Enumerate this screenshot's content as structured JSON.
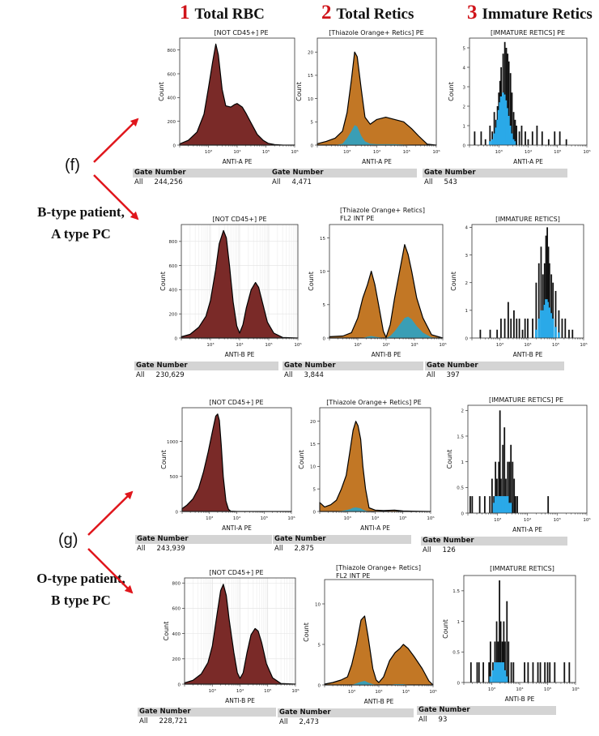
{
  "columns": [
    {
      "number": "1",
      "label": "Total RBC"
    },
    {
      "number": "2",
      "label": "Total Retics"
    },
    {
      "number": "3",
      "label": "Immature Retics"
    }
  ],
  "groups": [
    {
      "letter": "(f)",
      "line1": "B-type patient,",
      "line2": "A type PC"
    },
    {
      "letter": "(g)",
      "line1": "O-type patient,",
      "line2": "B type PC"
    }
  ],
  "colors": {
    "header_number": "#d0141a",
    "arrow": "#e0161c",
    "rbc_fill": "#7a2a28",
    "retic_fill": "#c27725",
    "immature_fill": "#2aa9e8",
    "teal_fill": "#3a9eb5",
    "outline": "#000000",
    "gate_bar": "#d4d4d4"
  },
  "gate_header": "Gate Number",
  "gate_label": "All",
  "x_tick_labels": [
    "10³",
    "10⁴",
    "10⁵",
    "10⁶"
  ],
  "ylabel": "Count",
  "chart_data": [
    {
      "id": "f1",
      "type": "area",
      "title": "[NOT CD45+] PE",
      "xlabel": "ANTI-A PE",
      "ylabel": "Count",
      "xscale": "log",
      "xlim": [
        100,
        1000000
      ],
      "ylim": [
        0,
        900
      ],
      "yticks": [
        0,
        200,
        400,
        600,
        800
      ],
      "grid": false,
      "fill": "rbc",
      "gate_count": "244,256",
      "x": [
        100,
        200,
        400,
        700,
        1000,
        1400,
        1800,
        2200,
        3000,
        4000,
        6000,
        8000,
        10000,
        15000,
        20000,
        30000,
        50000,
        80000,
        120000,
        200000,
        400000,
        1000000
      ],
      "y": [
        10,
        40,
        110,
        260,
        480,
        700,
        850,
        760,
        470,
        330,
        320,
        340,
        350,
        320,
        270,
        190,
        90,
        40,
        15,
        5,
        0,
        0
      ]
    },
    {
      "id": "f2",
      "type": "area",
      "title": "[Thiazole Orange+ Retics] PE",
      "xlabel": "ANTI-A PE",
      "ylabel": "Count",
      "xscale": "log",
      "xlim": [
        100,
        1000000
      ],
      "ylim": [
        0,
        23
      ],
      "yticks": [
        0,
        5,
        10,
        15,
        20
      ],
      "grid": false,
      "fill": "retic",
      "gate_count": "4,471",
      "x": [
        100,
        200,
        400,
        700,
        1000,
        1400,
        1800,
        2200,
        3000,
        4000,
        6000,
        10000,
        20000,
        40000,
        80000,
        150000,
        250000,
        500000,
        1000000
      ],
      "y": [
        0.3,
        0.8,
        1.5,
        3,
        7,
        14,
        20,
        19,
        12,
        6,
        4.5,
        5.5,
        6,
        5.5,
        5,
        3.5,
        2,
        0.2,
        0
      ],
      "teal": [
        0,
        0,
        0,
        0.3,
        1.5,
        3,
        4.3,
        4,
        2,
        0.8,
        0.3,
        0.2,
        0.2,
        0.2,
        0.1,
        0,
        0,
        0,
        0
      ]
    },
    {
      "id": "f3",
      "type": "bar",
      "title": "[IMMATURE RETICS] PE",
      "xlabel": "ANTI-A PE",
      "ylabel": "Count",
      "xscale": "log",
      "xlim": [
        100,
        1000000
      ],
      "ylim": [
        0,
        5.5
      ],
      "yticks": [
        0,
        1,
        2,
        3,
        4,
        5
      ],
      "grid": false,
      "fill": "immature",
      "gate_count": "543",
      "x": [
        150,
        250,
        350,
        500,
        600,
        700,
        800,
        900,
        1000,
        1100,
        1200,
        1400,
        1600,
        1800,
        2000,
        2200,
        2500,
        2800,
        3200,
        3600,
        4000,
        5000,
        6000,
        8000,
        10000,
        14000,
        20000,
        30000,
        50000,
        80000,
        120000,
        200000
      ],
      "y": [
        0.7,
        0.7,
        0.3,
        1,
        0.7,
        1.7,
        1.3,
        2,
        2.7,
        3.3,
        4,
        4.7,
        5.3,
        5,
        4.7,
        4.3,
        3.7,
        2.7,
        1.7,
        1.3,
        1,
        0.7,
        1,
        0.7,
        0.3,
        0.7,
        1,
        0.7,
        0.3,
        0.7,
        0.7,
        0.3
      ],
      "teal": [
        0,
        0,
        0,
        0.2,
        0.3,
        0.6,
        0.9,
        1.3,
        1.8,
        2.2,
        2.5,
        2.7,
        2.6,
        2.3,
        1.9,
        1.5,
        1,
        0.6,
        0.3,
        0.2,
        0,
        0,
        0,
        0,
        0,
        0,
        0,
        0,
        0,
        0,
        0,
        0
      ]
    },
    {
      "id": "f4",
      "type": "area",
      "title": "[NOT CD45+] PE",
      "xlabel": "ANTI-B PE",
      "ylabel": "Count",
      "xscale": "log",
      "xlim": [
        100,
        1000000
      ],
      "ylim": [
        0,
        940
      ],
      "yticks": [
        0,
        200,
        400,
        600,
        800
      ],
      "grid": true,
      "fill": "rbc",
      "gate_count": "230,629",
      "x": [
        100,
        200,
        400,
        700,
        1000,
        1500,
        2000,
        2800,
        3500,
        4500,
        6000,
        8000,
        10000,
        13000,
        17000,
        25000,
        35000,
        45000,
        60000,
        90000,
        150000,
        300000,
        1000000
      ],
      "y": [
        10,
        30,
        90,
        180,
        310,
        560,
        780,
        890,
        830,
        600,
        300,
        100,
        40,
        110,
        250,
        400,
        460,
        420,
        300,
        130,
        40,
        5,
        0
      ]
    },
    {
      "id": "f5",
      "type": "area",
      "title": "[Thiazole Orange+ Retics]",
      "subtitle": "FL2 INT PE",
      "xlabel": "ANTI-B PE",
      "ylabel": "Count",
      "xscale": "log",
      "xlim": [
        100,
        1000000
      ],
      "ylim": [
        0,
        17
      ],
      "yticks": [
        0,
        5,
        10,
        15
      ],
      "grid": false,
      "fill": "retic",
      "gate_count": "3,844",
      "x": [
        100,
        300,
        600,
        1000,
        1500,
        2200,
        3000,
        4000,
        6000,
        8000,
        10000,
        14000,
        20000,
        30000,
        45000,
        60000,
        80000,
        120000,
        200000,
        400000,
        1000000
      ],
      "y": [
        0.2,
        0.3,
        0.8,
        3,
        6,
        8,
        10,
        8,
        4,
        1,
        0.1,
        2,
        6,
        10,
        14,
        12.5,
        10,
        6,
        3,
        0.5,
        0
      ],
      "teal": [
        0,
        0,
        0,
        0,
        0,
        0.2,
        0.3,
        0.2,
        0.1,
        0,
        0,
        0.3,
        1,
        2,
        3,
        3.2,
        2.8,
        1.8,
        0.8,
        0.1,
        0
      ]
    },
    {
      "id": "f6",
      "type": "bar",
      "title": "[IMMATURE RETICS]",
      "xlabel": "ANTI-B PE",
      "ylabel": "Count",
      "xscale": "log",
      "xlim": [
        100,
        1000000
      ],
      "ylim": [
        0,
        4.1
      ],
      "yticks": [
        0,
        1,
        2,
        3,
        4
      ],
      "grid": false,
      "fill": "immature",
      "gate_count": "397",
      "x": [
        200,
        450,
        800,
        1100,
        1500,
        2000,
        2500,
        3200,
        4000,
        5000,
        6500,
        8000,
        10000,
        15000,
        20000,
        25000,
        30000,
        35000,
        40000,
        45000,
        50000,
        55000,
        60000,
        70000,
        80000,
        100000,
        130000,
        170000,
        220000,
        300000,
        400000
      ],
      "y": [
        0.3,
        0.3,
        0.3,
        0.7,
        0.7,
        1.3,
        0.7,
        1,
        0.7,
        0.7,
        0.3,
        0.7,
        0.7,
        0.7,
        2,
        2.7,
        3.3,
        2.3,
        2.7,
        3.7,
        4,
        3.3,
        2.7,
        2.3,
        2,
        1.7,
        1,
        0.7,
        0.7,
        0.3,
        0.3
      ],
      "teal": [
        0,
        0,
        0,
        0,
        0,
        0,
        0,
        0,
        0,
        0,
        0,
        0,
        0,
        0,
        0.3,
        0.7,
        1,
        1,
        1.2,
        1.4,
        1.4,
        1.3,
        1.1,
        0.9,
        0.7,
        0.4,
        0.2,
        0,
        0,
        0,
        0
      ]
    },
    {
      "id": "g1",
      "type": "area",
      "title": "[NOT CD45+] PE",
      "xlabel": "ANTI-A PE",
      "ylabel": "Count",
      "xscale": "log",
      "xlim": [
        100,
        1000000
      ],
      "ylim": [
        0,
        1480
      ],
      "yticks": [
        0,
        500,
        1000
      ],
      "grid": false,
      "fill": "rbc",
      "gate_count": "243,939",
      "x": [
        100,
        150,
        250,
        400,
        600,
        900,
        1300,
        1700,
        2000,
        2300,
        2700,
        3200,
        4000,
        5000,
        6000,
        10000,
        1000000
      ],
      "y": [
        40,
        90,
        180,
        330,
        560,
        850,
        1150,
        1360,
        1390,
        1300,
        950,
        500,
        150,
        30,
        5,
        0,
        0
      ]
    },
    {
      "id": "g2",
      "type": "area",
      "title": "[Thiazole Orange+ Retics] PE",
      "xlabel": "ANTI-A PE",
      "ylabel": "Count",
      "xscale": "log",
      "xlim": [
        100,
        1000000
      ],
      "ylim": [
        0,
        23
      ],
      "yticks": [
        0,
        5,
        10,
        15,
        20
      ],
      "grid": false,
      "fill": "retic",
      "gate_count": "2,875",
      "x": [
        100,
        150,
        250,
        400,
        600,
        900,
        1200,
        1600,
        2000,
        2400,
        3000,
        3600,
        4500,
        6000,
        10000,
        20000,
        50000,
        100000,
        1000000
      ],
      "y": [
        2,
        1,
        1.5,
        2.5,
        5,
        8,
        13,
        18,
        20,
        19,
        16,
        10,
        5,
        0.8,
        0.3,
        0.2,
        0.3,
        0.1,
        0
      ],
      "teal": [
        0,
        0,
        0,
        0,
        0.1,
        0.3,
        0.5,
        0.8,
        0.9,
        0.8,
        0.7,
        0.4,
        0.2,
        0,
        0,
        0,
        0,
        0,
        0
      ]
    },
    {
      "id": "g3",
      "type": "bar",
      "title": "[IMMATURE RETICS] PE",
      "xlabel": "ANTI-A PE",
      "ylabel": "Count",
      "xscale": "log",
      "xlim": [
        100,
        1000000
      ],
      "ylim": [
        0,
        2.1
      ],
      "yticks": [
        0,
        0.5,
        1,
        1.5,
        2
      ],
      "grid": false,
      "fill": "immature",
      "gate_count": "126",
      "x": [
        120,
        140,
        250,
        370,
        550,
        650,
        750,
        850,
        950,
        1100,
        1200,
        1300,
        1500,
        1700,
        1900,
        2200,
        2500,
        2800,
        3200,
        3600,
        4000,
        4600,
        50000
      ],
      "y": [
        0.33,
        0.33,
        0.33,
        0.33,
        0.33,
        0.67,
        0.33,
        1,
        0.67,
        1,
        2,
        0.67,
        1.33,
        1.67,
        0.67,
        1,
        1,
        1.33,
        1,
        0.67,
        0.33,
        0.33,
        0.33
      ],
      "teal": [
        0,
        0,
        0,
        0,
        0,
        0,
        0.2,
        0.33,
        0.33,
        0.33,
        0.33,
        0.33,
        0.33,
        0.33,
        0.33,
        0.33,
        0.2,
        0.2,
        0,
        0,
        0,
        0,
        0
      ]
    },
    {
      "id": "g4",
      "type": "area",
      "title": "[NOT CD45+] PE",
      "xlabel": "ANTI-B PE",
      "ylabel": "Count",
      "xscale": "log",
      "xlim": [
        100,
        1000000
      ],
      "ylim": [
        0,
        840
      ],
      "yticks": [
        0,
        200,
        400,
        600,
        800
      ],
      "grid": true,
      "fill": "rbc",
      "gate_count": "228,721",
      "x": [
        100,
        200,
        400,
        700,
        1000,
        1500,
        2000,
        2500,
        3200,
        4000,
        6000,
        8000,
        10000,
        13000,
        18000,
        25000,
        35000,
        45000,
        60000,
        90000,
        150000,
        300000,
        1000000
      ],
      "y": [
        10,
        30,
        80,
        170,
        300,
        560,
        740,
        790,
        700,
        520,
        250,
        90,
        45,
        90,
        250,
        390,
        440,
        420,
        330,
        160,
        50,
        5,
        0
      ]
    },
    {
      "id": "g5",
      "type": "area",
      "title": "[Thiazole Orange+ Retics]",
      "subtitle": "FL2 INT PE",
      "xlabel": "ANTI-B PE",
      "ylabel": "Count",
      "xscale": "log",
      "xlim": [
        100,
        1000000
      ],
      "ylim": [
        0,
        13
      ],
      "yticks": [
        0,
        5,
        10
      ],
      "grid": false,
      "fill": "retic",
      "gate_count": "2,473",
      "x": [
        100,
        200,
        400,
        700,
        1000,
        1500,
        2200,
        3000,
        4000,
        6000,
        8000,
        10000,
        15000,
        25000,
        40000,
        60000,
        80000,
        120000,
        200000,
        400000,
        700000,
        1000000
      ],
      "y": [
        0.1,
        0.3,
        0.6,
        1,
        2.5,
        5,
        8,
        8.5,
        6,
        2,
        0.6,
        0.3,
        1,
        3,
        4,
        4.5,
        5,
        4.5,
        3.5,
        2,
        0.5,
        0
      ],
      "teal": [
        0,
        0,
        0,
        0,
        0,
        0.2,
        0.4,
        0.5,
        0.3,
        0.1,
        0,
        0,
        0,
        0,
        0.1,
        0.1,
        0.1,
        0,
        0,
        0,
        0,
        0
      ]
    },
    {
      "id": "g6",
      "type": "bar",
      "title": "[IMMATURE RETICS]",
      "xlabel": "ANTI-B PE",
      "ylabel": "Count",
      "xscale": "log",
      "xlim": [
        100,
        1000000
      ],
      "ylim": [
        0,
        1.75
      ],
      "yticks": [
        0,
        0.5,
        1,
        1.5
      ],
      "grid": false,
      "fill": "immature",
      "gate_count": "93",
      "x": [
        180,
        300,
        350,
        500,
        800,
        900,
        1100,
        1300,
        1500,
        1700,
        1900,
        2100,
        2400,
        2700,
        3000,
        3500,
        4000,
        5000,
        6000,
        15000,
        20000,
        30000,
        45000,
        55000,
        80000,
        100000,
        120000,
        180000,
        400000,
        600000
      ],
      "y": [
        0.33,
        0.33,
        0.33,
        0.33,
        0.33,
        0.67,
        0.33,
        0.67,
        1,
        0.67,
        1.67,
        1,
        0.67,
        1,
        0.67,
        1.33,
        0.67,
        0.33,
        0.33,
        0.33,
        0.33,
        0.33,
        0.33,
        0.33,
        0.33,
        0.33,
        0.33,
        0.33,
        0.33,
        0.33
      ],
      "teal": [
        0,
        0,
        0,
        0,
        0,
        0.1,
        0.2,
        0.33,
        0.33,
        0.33,
        0.33,
        0.33,
        0.33,
        0.33,
        0.2,
        0.1,
        0,
        0,
        0,
        0,
        0,
        0,
        0,
        0,
        0,
        0,
        0,
        0,
        0,
        0
      ]
    }
  ]
}
